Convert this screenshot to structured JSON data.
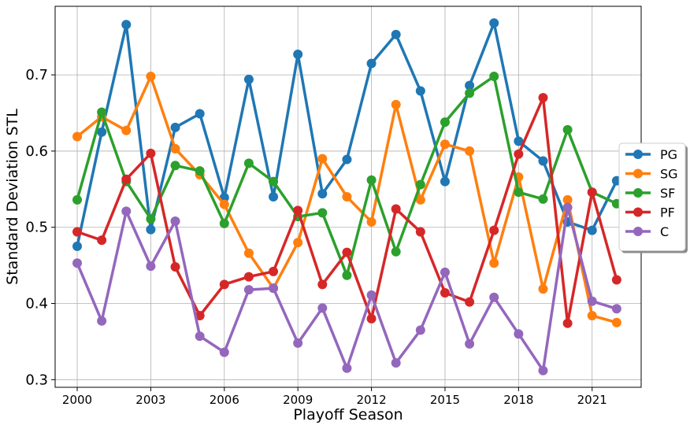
{
  "chart_data": {
    "type": "line",
    "xlabel": "Playoff Season",
    "ylabel": "Standard Deviation STL",
    "x": [
      2000,
      2001,
      2002,
      2003,
      2004,
      2005,
      2006,
      2007,
      2008,
      2009,
      2010,
      2011,
      2012,
      2013,
      2014,
      2015,
      2016,
      2017,
      2018,
      2019,
      2020,
      2021,
      2022
    ],
    "xlim": [
      1999.1,
      2023.0
    ],
    "ylim": [
      0.29,
      0.79
    ],
    "xticks": [
      2000,
      2003,
      2006,
      2009,
      2012,
      2015,
      2018,
      2021
    ],
    "yticks": [
      0.3,
      0.4,
      0.5,
      0.6,
      0.7
    ],
    "ytick_labels": [
      "0.3",
      "0.4",
      "0.5",
      "0.6",
      "0.7"
    ],
    "grid": true,
    "legend_position": "center-right",
    "series": [
      {
        "name": "PG",
        "color": "#1f77b4",
        "values": [
          0.475,
          0.625,
          0.766,
          0.497,
          0.631,
          0.649,
          0.539,
          0.694,
          0.54,
          0.727,
          0.544,
          0.589,
          0.715,
          0.753,
          0.679,
          0.56,
          0.686,
          0.768,
          0.613,
          0.587,
          0.507,
          0.496,
          0.561
        ]
      },
      {
        "name": "SG",
        "color": "#ff7f0e",
        "values": [
          0.619,
          0.645,
          0.627,
          0.698,
          0.603,
          0.569,
          0.53,
          0.466,
          0.42,
          0.48,
          0.59,
          0.54,
          0.507,
          0.661,
          0.536,
          0.609,
          0.6,
          0.453,
          0.566,
          0.419,
          0.536,
          0.384,
          0.375
        ]
      },
      {
        "name": "SF",
        "color": "#2ca02c",
        "values": [
          0.536,
          0.651,
          0.56,
          0.511,
          0.581,
          0.574,
          0.505,
          0.584,
          0.56,
          0.514,
          0.519,
          0.437,
          0.562,
          0.468,
          0.556,
          0.638,
          0.676,
          0.698,
          0.546,
          0.537,
          0.628,
          0.546,
          0.531
        ]
      },
      {
        "name": "PF",
        "color": "#d62728",
        "values": [
          0.494,
          0.483,
          0.563,
          0.597,
          0.448,
          0.384,
          0.425,
          0.435,
          0.442,
          0.522,
          0.425,
          0.467,
          0.38,
          0.524,
          0.494,
          0.414,
          0.402,
          0.496,
          0.596,
          0.67,
          0.374,
          0.546,
          0.431
        ]
      },
      {
        "name": "C",
        "color": "#9467bd",
        "values": [
          0.453,
          0.377,
          0.521,
          0.449,
          0.508,
          0.357,
          0.336,
          0.418,
          0.42,
          0.348,
          0.394,
          0.315,
          0.411,
          0.322,
          0.365,
          0.441,
          0.347,
          0.408,
          0.36,
          0.312,
          0.526,
          0.403,
          0.393
        ]
      }
    ]
  }
}
